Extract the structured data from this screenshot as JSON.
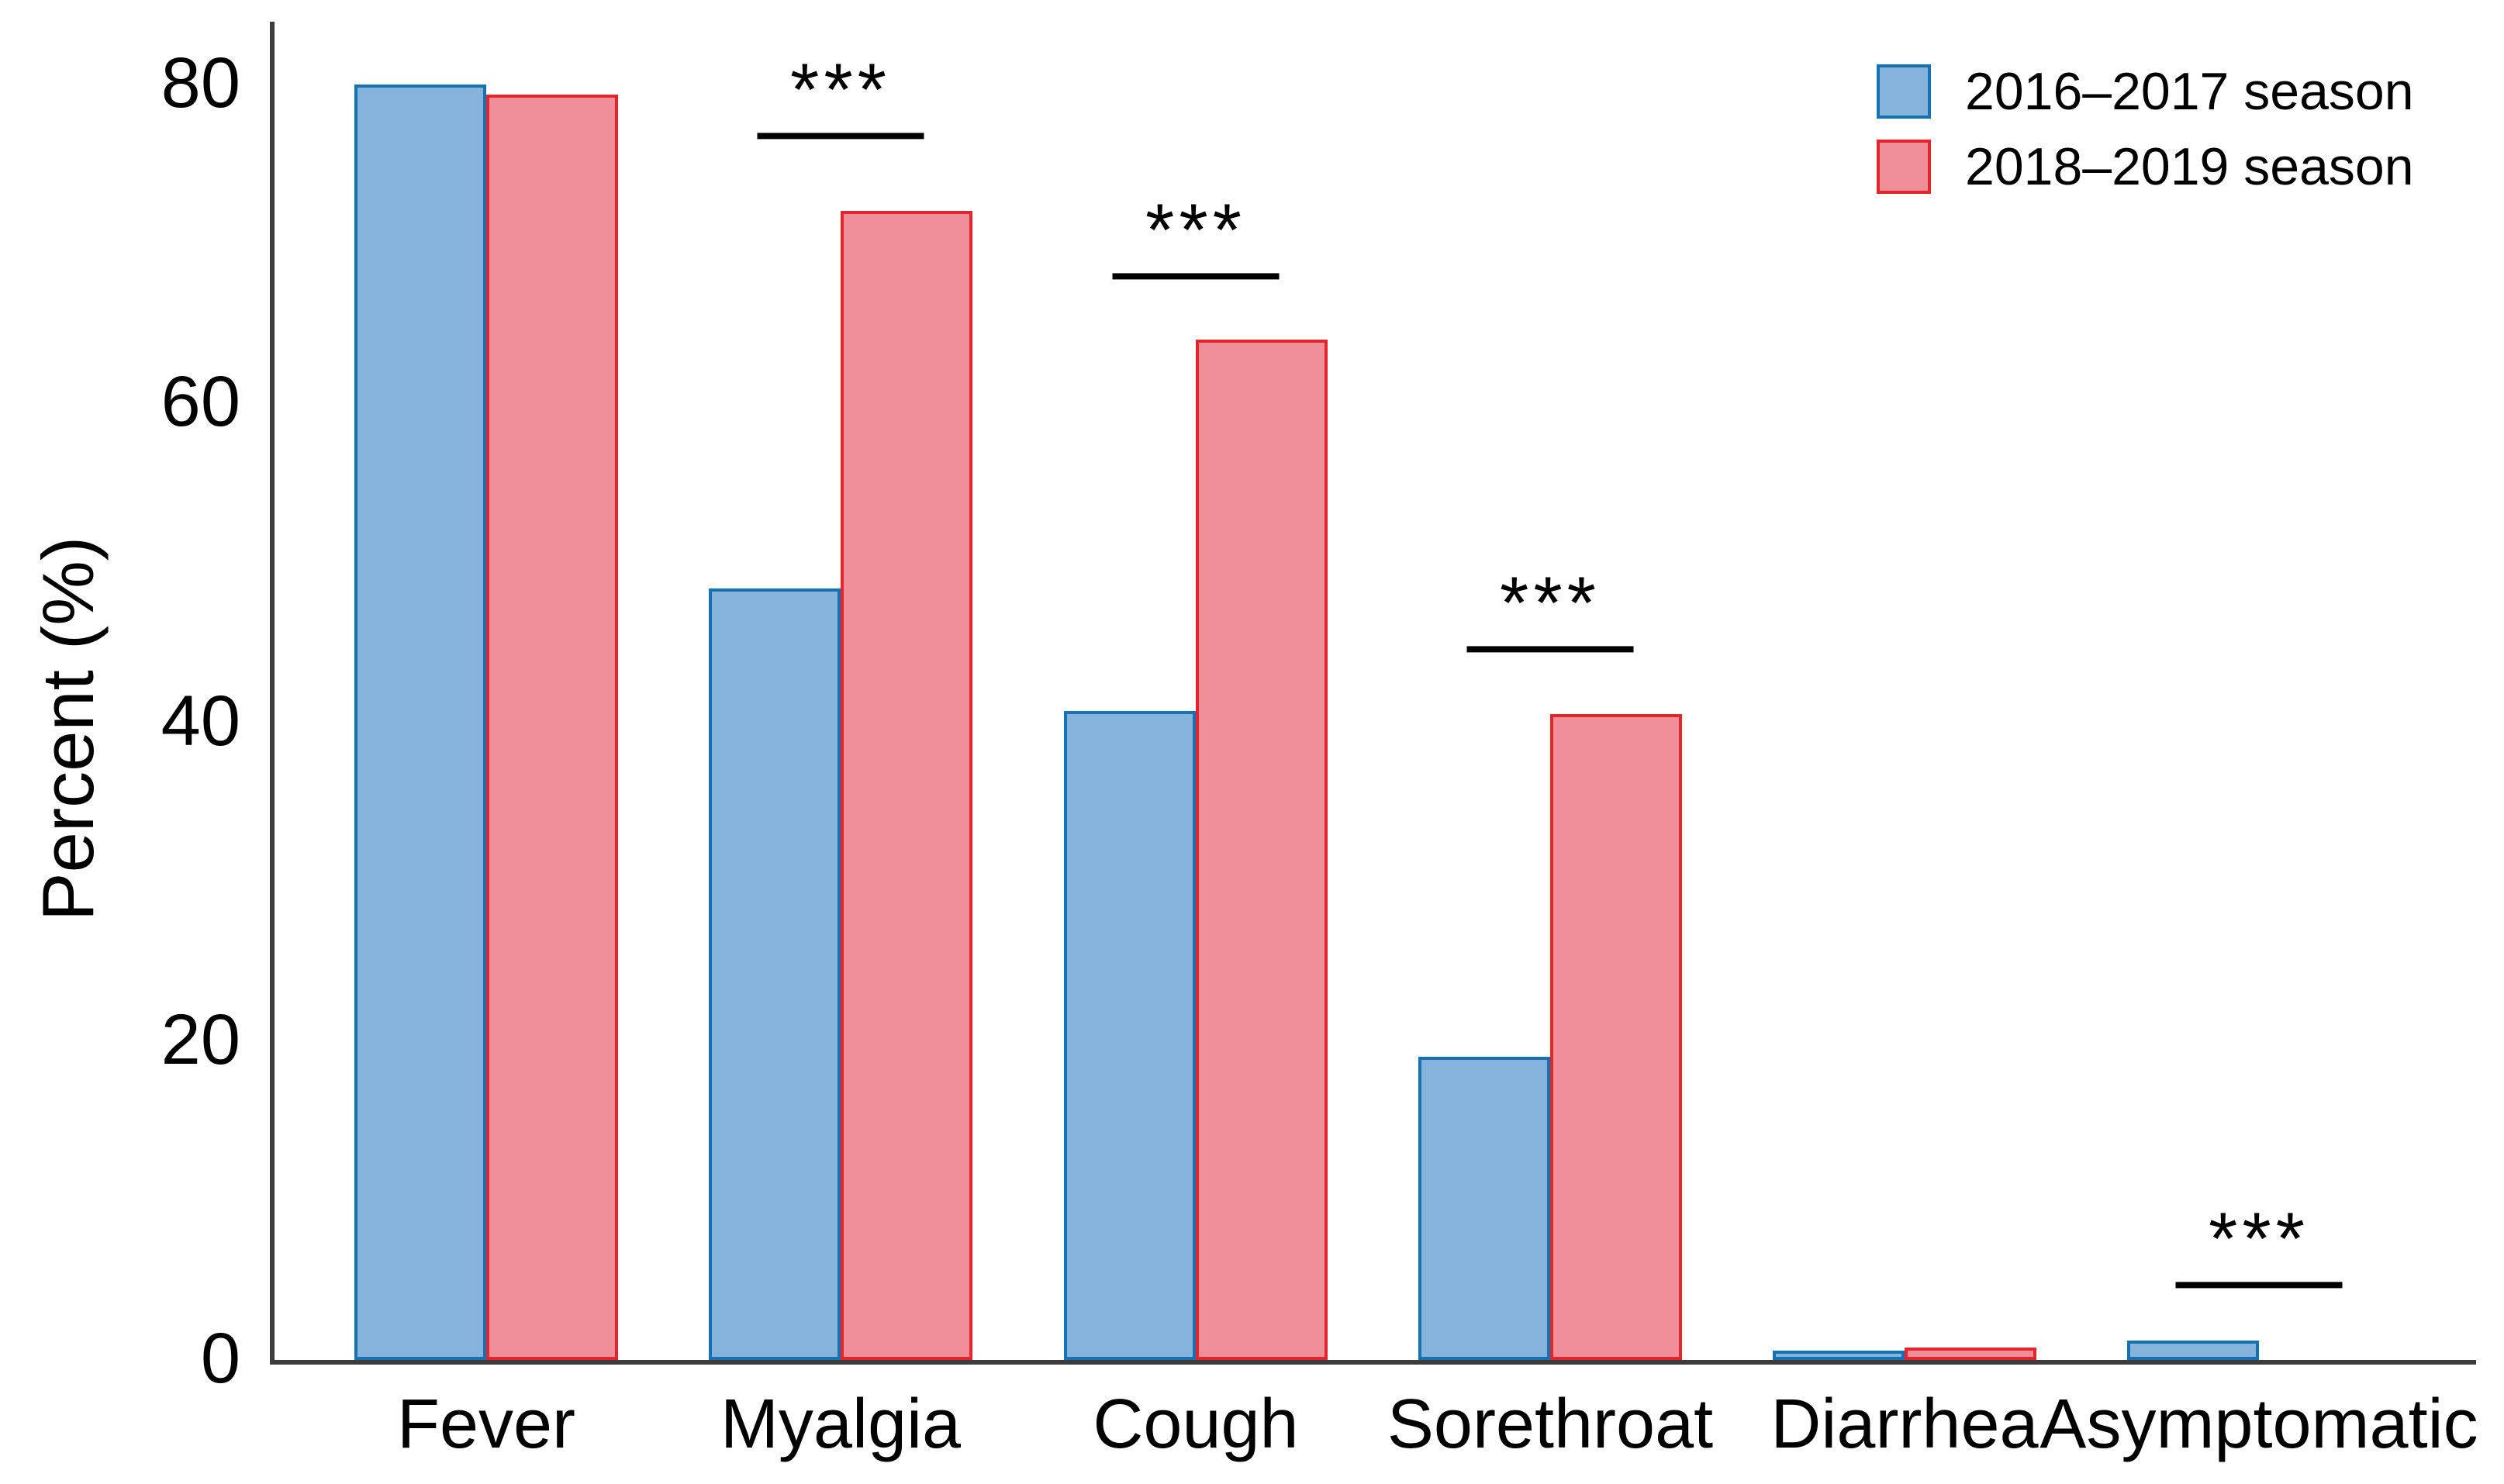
{
  "chart_data": {
    "type": "bar",
    "title": "",
    "xlabel": "",
    "ylabel": "Percent (%)",
    "categories": [
      "Fever",
      "Myalgia",
      "Cough",
      "Sorethroat",
      "Diarrhea",
      "Asymptomatic"
    ],
    "series": [
      {
        "name": "2016–2017 season",
        "fill_color": "#86B3D9",
        "border_color": "#1571B1",
        "values": [
          80.0,
          48.4,
          40.7,
          19.0,
          0.6,
          1.2
        ]
      },
      {
        "name": "2018–2019 season",
        "fill_color": "#F08E99",
        "border_color": "#E3252E",
        "values": [
          79.4,
          72.1,
          64.0,
          40.5,
          0.8,
          0
        ]
      }
    ],
    "yticks": [
      "0",
      "20",
      "40",
      "60",
      "80"
    ],
    "ytick_values": [
      0,
      20,
      40,
      60,
      80
    ],
    "ylim": [
      0,
      84
    ],
    "grid": false,
    "legend_position": "top-right",
    "significance_annotations": [
      {
        "category": "Myalgia",
        "label": "***",
        "line_at_percent": 76.6
      },
      {
        "category": "Cough",
        "label": "***",
        "line_at_percent": 67.8
      },
      {
        "category": "Sorethroat",
        "label": "***",
        "line_at_percent": 44.4
      },
      {
        "category": "Asymptomatic",
        "label": "***",
        "line_at_percent": 4.5
      }
    ],
    "axis_color": "#3C3C3C"
  }
}
